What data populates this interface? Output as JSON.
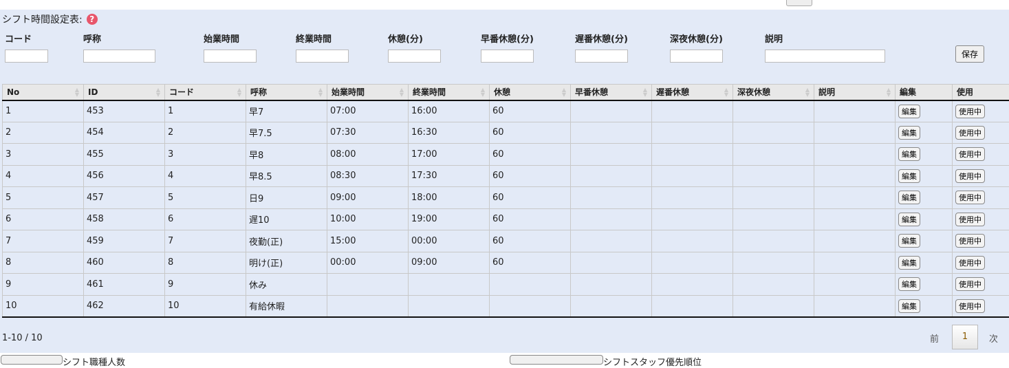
{
  "form": {
    "title": "シフト時間設定表:",
    "fields": [
      "コード",
      "呼称",
      "始業時間",
      "終業時間",
      "休憩(分)",
      "早番休憩(分)",
      "遅番休憩(分)",
      "深夜休憩(分)",
      "説明"
    ],
    "save_label": "保存"
  },
  "table": {
    "headers": [
      "No",
      "ID",
      "コード",
      "呼称",
      "始業時間",
      "終業時間",
      "休憩",
      "早番休憩",
      "遅番休憩",
      "深夜休憩",
      "説明",
      "編集",
      "使用"
    ],
    "edit_label": "編集",
    "use_label": "使用中",
    "rows": [
      [
        "1",
        "453",
        "1",
        "早7",
        "07:00",
        "16:00",
        "60",
        "",
        "",
        "",
        ""
      ],
      [
        "2",
        "454",
        "2",
        "早7.5",
        "07:30",
        "16:30",
        "60",
        "",
        "",
        "",
        ""
      ],
      [
        "3",
        "455",
        "3",
        "早8",
        "08:00",
        "17:00",
        "60",
        "",
        "",
        "",
        ""
      ],
      [
        "4",
        "456",
        "4",
        "早8.5",
        "08:30",
        "17:30",
        "60",
        "",
        "",
        "",
        ""
      ],
      [
        "5",
        "457",
        "5",
        "日9",
        "09:00",
        "18:00",
        "60",
        "",
        "",
        "",
        ""
      ],
      [
        "6",
        "458",
        "6",
        "遅10",
        "10:00",
        "19:00",
        "60",
        "",
        "",
        "",
        ""
      ],
      [
        "7",
        "459",
        "7",
        "夜勤(正)",
        "15:00",
        "00:00",
        "60",
        "",
        "",
        "",
        ""
      ],
      [
        "8",
        "460",
        "8",
        "明け(正)",
        "00:00",
        "09:00",
        "60",
        "",
        "",
        "",
        ""
      ],
      [
        "9",
        "461",
        "9",
        "休み",
        "",
        "",
        "",
        "",
        "",
        "",
        ""
      ],
      [
        "10",
        "462",
        "10",
        "有給休暇",
        "",
        "",
        "",
        "",
        "",
        "",
        ""
      ]
    ]
  },
  "pagination": {
    "count": "1-10 / 10",
    "prev": "前",
    "page": "1",
    "next": "次"
  },
  "bottom": {
    "left": "シフト職種人数",
    "right": "シフトスタッフ優先順位"
  }
}
